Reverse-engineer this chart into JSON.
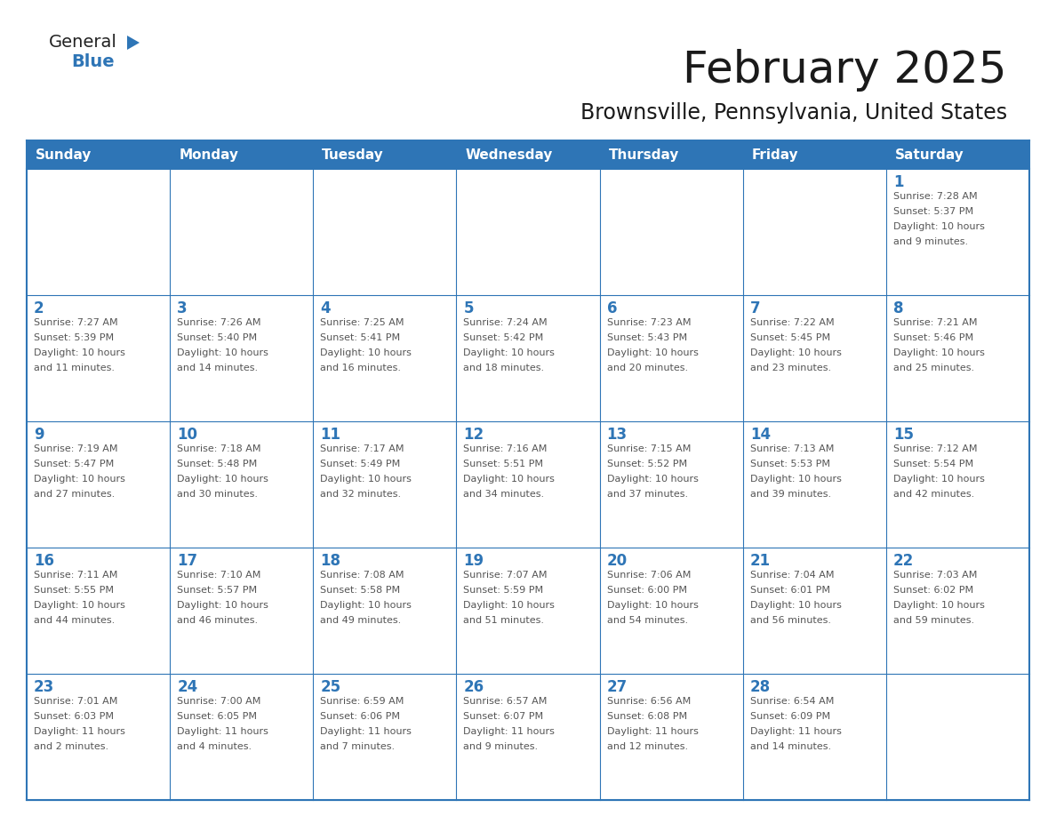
{
  "title": "February 2025",
  "subtitle": "Brownsville, Pennsylvania, United States",
  "header_bg": "#2e75b6",
  "header_text_color": "#ffffff",
  "cell_border_color": "#2e75b6",
  "day_number_color": "#2e75b6",
  "info_text_color": "#555555",
  "background_color": "#ffffff",
  "days_of_week": [
    "Sunday",
    "Monday",
    "Tuesday",
    "Wednesday",
    "Thursday",
    "Friday",
    "Saturday"
  ],
  "weeks": [
    [
      {
        "day": null,
        "info": ""
      },
      {
        "day": null,
        "info": ""
      },
      {
        "day": null,
        "info": ""
      },
      {
        "day": null,
        "info": ""
      },
      {
        "day": null,
        "info": ""
      },
      {
        "day": null,
        "info": ""
      },
      {
        "day": 1,
        "info": "Sunrise: 7:28 AM\nSunset: 5:37 PM\nDaylight: 10 hours\nand 9 minutes."
      }
    ],
    [
      {
        "day": 2,
        "info": "Sunrise: 7:27 AM\nSunset: 5:39 PM\nDaylight: 10 hours\nand 11 minutes."
      },
      {
        "day": 3,
        "info": "Sunrise: 7:26 AM\nSunset: 5:40 PM\nDaylight: 10 hours\nand 14 minutes."
      },
      {
        "day": 4,
        "info": "Sunrise: 7:25 AM\nSunset: 5:41 PM\nDaylight: 10 hours\nand 16 minutes."
      },
      {
        "day": 5,
        "info": "Sunrise: 7:24 AM\nSunset: 5:42 PM\nDaylight: 10 hours\nand 18 minutes."
      },
      {
        "day": 6,
        "info": "Sunrise: 7:23 AM\nSunset: 5:43 PM\nDaylight: 10 hours\nand 20 minutes."
      },
      {
        "day": 7,
        "info": "Sunrise: 7:22 AM\nSunset: 5:45 PM\nDaylight: 10 hours\nand 23 minutes."
      },
      {
        "day": 8,
        "info": "Sunrise: 7:21 AM\nSunset: 5:46 PM\nDaylight: 10 hours\nand 25 minutes."
      }
    ],
    [
      {
        "day": 9,
        "info": "Sunrise: 7:19 AM\nSunset: 5:47 PM\nDaylight: 10 hours\nand 27 minutes."
      },
      {
        "day": 10,
        "info": "Sunrise: 7:18 AM\nSunset: 5:48 PM\nDaylight: 10 hours\nand 30 minutes."
      },
      {
        "day": 11,
        "info": "Sunrise: 7:17 AM\nSunset: 5:49 PM\nDaylight: 10 hours\nand 32 minutes."
      },
      {
        "day": 12,
        "info": "Sunrise: 7:16 AM\nSunset: 5:51 PM\nDaylight: 10 hours\nand 34 minutes."
      },
      {
        "day": 13,
        "info": "Sunrise: 7:15 AM\nSunset: 5:52 PM\nDaylight: 10 hours\nand 37 minutes."
      },
      {
        "day": 14,
        "info": "Sunrise: 7:13 AM\nSunset: 5:53 PM\nDaylight: 10 hours\nand 39 minutes."
      },
      {
        "day": 15,
        "info": "Sunrise: 7:12 AM\nSunset: 5:54 PM\nDaylight: 10 hours\nand 42 minutes."
      }
    ],
    [
      {
        "day": 16,
        "info": "Sunrise: 7:11 AM\nSunset: 5:55 PM\nDaylight: 10 hours\nand 44 minutes."
      },
      {
        "day": 17,
        "info": "Sunrise: 7:10 AM\nSunset: 5:57 PM\nDaylight: 10 hours\nand 46 minutes."
      },
      {
        "day": 18,
        "info": "Sunrise: 7:08 AM\nSunset: 5:58 PM\nDaylight: 10 hours\nand 49 minutes."
      },
      {
        "day": 19,
        "info": "Sunrise: 7:07 AM\nSunset: 5:59 PM\nDaylight: 10 hours\nand 51 minutes."
      },
      {
        "day": 20,
        "info": "Sunrise: 7:06 AM\nSunset: 6:00 PM\nDaylight: 10 hours\nand 54 minutes."
      },
      {
        "day": 21,
        "info": "Sunrise: 7:04 AM\nSunset: 6:01 PM\nDaylight: 10 hours\nand 56 minutes."
      },
      {
        "day": 22,
        "info": "Sunrise: 7:03 AM\nSunset: 6:02 PM\nDaylight: 10 hours\nand 59 minutes."
      }
    ],
    [
      {
        "day": 23,
        "info": "Sunrise: 7:01 AM\nSunset: 6:03 PM\nDaylight: 11 hours\nand 2 minutes."
      },
      {
        "day": 24,
        "info": "Sunrise: 7:00 AM\nSunset: 6:05 PM\nDaylight: 11 hours\nand 4 minutes."
      },
      {
        "day": 25,
        "info": "Sunrise: 6:59 AM\nSunset: 6:06 PM\nDaylight: 11 hours\nand 7 minutes."
      },
      {
        "day": 26,
        "info": "Sunrise: 6:57 AM\nSunset: 6:07 PM\nDaylight: 11 hours\nand 9 minutes."
      },
      {
        "day": 27,
        "info": "Sunrise: 6:56 AM\nSunset: 6:08 PM\nDaylight: 11 hours\nand 12 minutes."
      },
      {
        "day": 28,
        "info": "Sunrise: 6:54 AM\nSunset: 6:09 PM\nDaylight: 11 hours\nand 14 minutes."
      },
      {
        "day": null,
        "info": ""
      }
    ]
  ],
  "logo_triangle_color": "#2e75b6",
  "logo_general_color": "#222222",
  "logo_blue_color": "#2e75b6",
  "title_color": "#1a1a1a",
  "subtitle_color": "#1a1a1a"
}
